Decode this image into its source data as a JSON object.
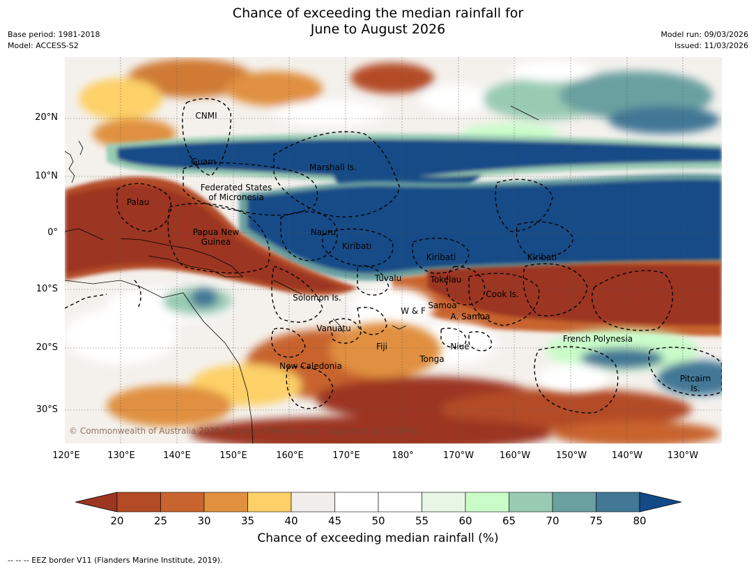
{
  "title_line1": "Chance of exceeding the median rainfall for",
  "title_line2": "June to August 2026",
  "meta_left": {
    "base_period": "Base period: 1981-2018",
    "model": "Model: ACCESS-S2"
  },
  "meta_right": {
    "model_run": "Model run: 09/03/2026",
    "issued": "Issued: 11/03/2026"
  },
  "copyright": "© Commonwealth of Australia 2026, Bureau of Meteorology, supported by COSPPac",
  "lat_ticks": [
    "20°N",
    "10°N",
    "0°",
    "10°S",
    "20°S",
    "30°S"
  ],
  "lon_ticks": [
    "120°E",
    "130°E",
    "140°E",
    "150°E",
    "160°E",
    "170°E",
    "180°",
    "170°W",
    "160°W",
    "150°W",
    "140°W",
    "130°W"
  ],
  "places": {
    "cnmi": "CNMI",
    "guam": "Guam",
    "marshall": "Marshall Is.",
    "fsm1": "Federated States",
    "fsm2": "of Micronesia",
    "palau": "Palau",
    "png1": "Papua New",
    "png2": "Guinea",
    "nauru": "Nauru",
    "kiribati_w": "Kiribati",
    "kiribati_c": "Kiribati",
    "kiribati_e": "Kiribati",
    "tuvalu": "Tuvalu",
    "tokelau": "Tokelau",
    "cook": "Cook Is.",
    "solomon": "Solomon Is.",
    "wf": "W & F",
    "samoa": "Samoa",
    "asamoa": "A. Samoa",
    "vanuatu": "Vanuatu",
    "fiji": "Fiji",
    "niue": "Niue",
    "tonga": "Tonga",
    "frpoly": "French Polynesia",
    "newcal": "New Caledonia",
    "pitcairn1": "Pitcairn",
    "pitcairn2": "Is."
  },
  "colorbar": {
    "labels": [
      "20",
      "25",
      "30",
      "35",
      "40",
      "45",
      "50",
      "55",
      "60",
      "65",
      "70",
      "75",
      "80"
    ],
    "title": "Chance of exceeding median rainfall (%)",
    "colors": [
      "#9c3620",
      "#b34b26",
      "#c8642d",
      "#e0903f",
      "#fdd068",
      "#f0edea",
      "#ffffff",
      "#ffffff",
      "#e8f6e6",
      "#c9fcc9",
      "#99cbb3",
      "#6aa0a0",
      "#427796",
      "#134b87"
    ]
  },
  "footnote": "--  --  -- EEZ border V11 (Flanders Marine Institute, 2019)."
}
